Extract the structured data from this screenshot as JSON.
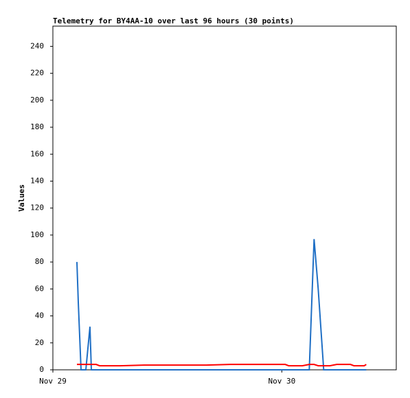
{
  "chart_data": {
    "type": "line",
    "title": "Telemetry for BY4AA-10 over last 96 hours (30 points)",
    "ylabel": "Values",
    "x": [
      0.105,
      0.111,
      0.123,
      0.144,
      0.162,
      0.168,
      0.189,
      0.204,
      0.294,
      0.399,
      0.52,
      0.67,
      0.775,
      0.88,
      0.97,
      1.015,
      1.03,
      1.09,
      1.12,
      1.141,
      1.159,
      1.183,
      1.21,
      1.24,
      1.285,
      1.3,
      1.315,
      1.345,
      1.36,
      1.369
    ],
    "series": [
      {
        "color": "#1f6fc5",
        "values": [
          80,
          50,
          0,
          0,
          32,
          0,
          0,
          0,
          0,
          0,
          0,
          0,
          0,
          0,
          0,
          0,
          0,
          0,
          0,
          97,
          60,
          0,
          0,
          0,
          0,
          0,
          0,
          0,
          0,
          0
        ]
      },
      {
        "color": "#ff0000",
        "values": [
          4,
          4,
          4,
          4,
          4,
          4,
          4,
          3,
          3,
          3.5,
          3.5,
          3.5,
          4,
          4,
          4,
          4,
          3,
          3,
          4,
          4,
          3,
          3,
          3,
          4,
          4,
          4,
          3,
          3,
          3,
          4
        ]
      }
    ],
    "xlim": [
      0,
      1.5
    ],
    "xticks": [
      {
        "value": 0,
        "label": "Nov 29"
      },
      {
        "value": 1,
        "label": "Nov 30"
      }
    ],
    "ylim": [
      0,
      255
    ],
    "yticks": [
      0,
      20,
      40,
      60,
      80,
      100,
      120,
      140,
      160,
      180,
      200,
      220,
      240
    ]
  }
}
